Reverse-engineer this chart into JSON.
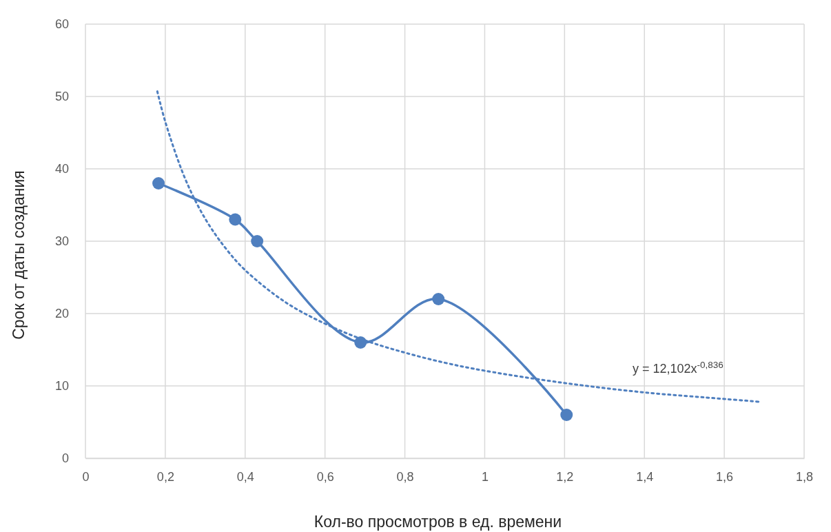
{
  "chart_data": {
    "type": "line",
    "xlabel": "Кол-во просмотров в ед. времени",
    "ylabel": "Срок от даты создания",
    "xlim": [
      0,
      1.8
    ],
    "ylim": [
      0,
      60
    ],
    "xticks": [
      0,
      {
        "value": 0.2,
        "label": "0,2"
      },
      {
        "value": 0.4,
        "label": "0,4"
      },
      {
        "value": 0.6,
        "label": "0,6"
      },
      {
        "value": 0.8,
        "label": "0,8"
      },
      1,
      {
        "value": 1.2,
        "label": "1,2"
      },
      {
        "value": 1.4,
        "label": "1,4"
      },
      {
        "value": 1.6,
        "label": "1,6"
      },
      {
        "value": 1.8,
        "label": "1,8"
      }
    ],
    "yticks": [
      0,
      10,
      20,
      30,
      40,
      50,
      60
    ],
    "grid": true,
    "series": [
      {
        "color": "#4f7fbf",
        "marker": "circle",
        "line_style": "solid",
        "x": [
          0.183,
          0.375,
          0.43,
          0.689,
          0.884,
          1.205
        ],
        "values": [
          38,
          33,
          30,
          16,
          22,
          6
        ]
      },
      {
        "color": "#4f7fbf",
        "marker": "none",
        "line_style": "dotted",
        "x": [
          0.18,
          0.2,
          0.25,
          0.3,
          0.35,
          0.4,
          0.5,
          0.6,
          0.7,
          0.8,
          0.9,
          1.0,
          1.2,
          1.4,
          1.6,
          1.69
        ],
        "values": [
          50.7,
          46.5,
          38.6,
          33.1,
          29.1,
          26.0,
          21.6,
          18.6,
          16.3,
          14.6,
          13.2,
          12.1,
          10.4,
          9.1,
          8.2,
          7.8
        ]
      }
    ],
    "annotations": [
      "y = 12,102x$^{-0,836}$"
    ]
  }
}
